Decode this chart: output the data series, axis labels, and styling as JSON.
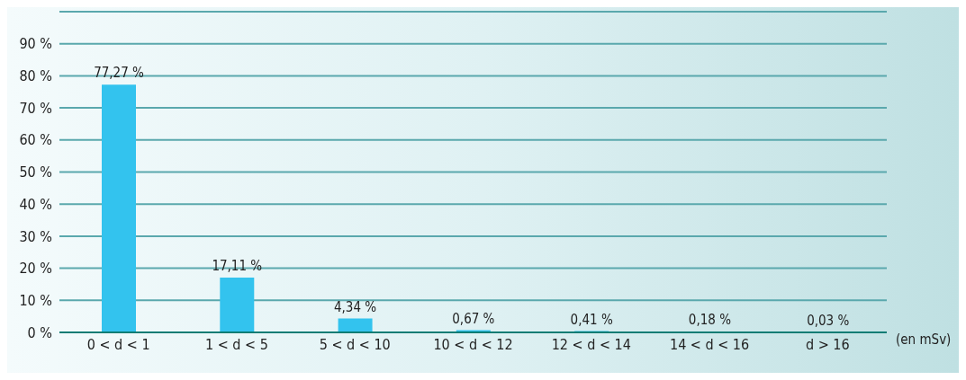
{
  "chart_data": {
    "type": "bar",
    "categories": [
      "0 < d < 1",
      "1 < d < 5",
      "5 < d < 10",
      "10 < d < 12",
      "12 < d < 14",
      "14 < d < 16",
      "d > 16"
    ],
    "values": [
      77.27,
      17.11,
      4.34,
      0.67,
      0.41,
      0.18,
      0.03
    ],
    "value_labels": [
      "77,27 %",
      "17,11 %",
      "4,34 %",
      "0,67 %",
      "0,41 %",
      "0,18 %",
      "0,03 %"
    ],
    "color": "#33c3ee",
    "xlabel": "(en mSv)",
    "ylim": [
      0,
      100
    ],
    "yticks": [
      {
        "value": 0,
        "label": "0 %"
      },
      {
        "value": 10,
        "label": "10 %"
      },
      {
        "value": 20,
        "label": "20 %"
      },
      {
        "value": 30,
        "label": "30 %"
      },
      {
        "value": 40,
        "label": "40 %"
      },
      {
        "value": 50,
        "label": "50 %"
      },
      {
        "value": 60,
        "label": "60 %"
      },
      {
        "value": 70,
        "label": "70 %"
      },
      {
        "value": 80,
        "label": "80 %"
      },
      {
        "value": 90,
        "label": "90 %"
      }
    ],
    "grid": "y",
    "legend": false
  }
}
